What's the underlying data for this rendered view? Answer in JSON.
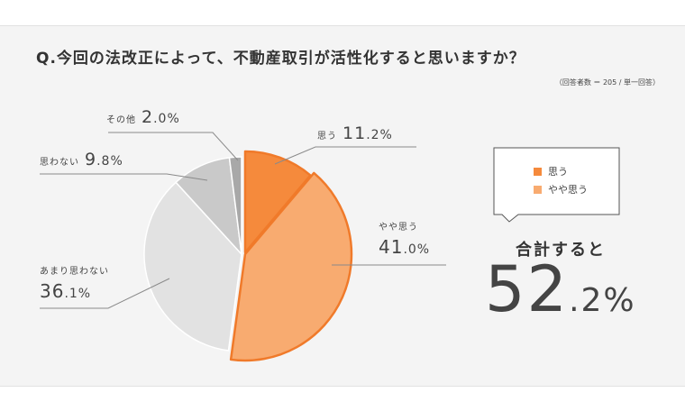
{
  "title": "Q.今回の法改正によって、不動産取引が活性化すると思いますか？",
  "note": "（回答者数 ＝ 205 / 単一回答）",
  "chart_data": {
    "type": "pie",
    "slices": [
      {
        "label": "思う",
        "value": 11.2,
        "int": "11",
        "dec": ".2%",
        "color": "#f58a3c"
      },
      {
        "label": "やや思う",
        "value": 41.0,
        "int": "41",
        "dec": ".0%",
        "color": "#f8ab70"
      },
      {
        "label": "あまり思わない",
        "value": 36.1,
        "int": "36",
        "dec": ".1%",
        "color": "#e2e2e2"
      },
      {
        "label": "思わない",
        "value": 9.8,
        "int": "9",
        "dec": ".8%",
        "color": "#c9c9c9"
      },
      {
        "label": "その他",
        "value": 2.0,
        "int": "2",
        "dec": ".0%",
        "color": "#a8a8a8"
      }
    ],
    "legend": [
      {
        "label": "思う",
        "color": "#f58a3c"
      },
      {
        "label": "やや思う",
        "color": "#f8ab70"
      }
    ]
  },
  "summary": {
    "label": "合計すると",
    "int": "52",
    "dec": ".2%"
  }
}
